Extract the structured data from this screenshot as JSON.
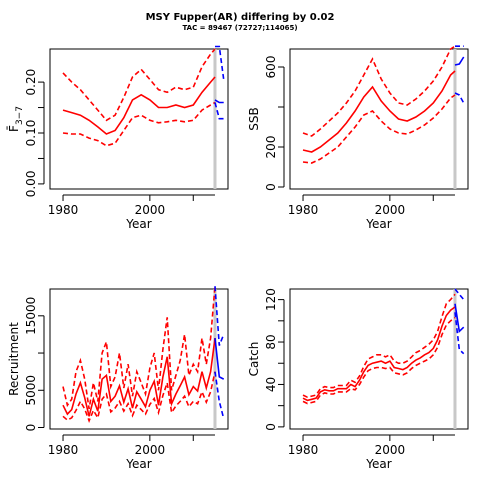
{
  "figure": {
    "title": "MSY Fupper(AR) differing by 0.02",
    "subtitle": "TAC = 89467 (72727;114065)",
    "colors": {
      "history": "#ff0000",
      "projection": "#0000ff",
      "marker": "#c8c8c8",
      "axis": "#000000"
    }
  },
  "chart_data": [
    {
      "type": "line",
      "panel": "top-left",
      "xlabel": "Year",
      "ylabel": "F̄3−7",
      "ylabel_main": "F̄",
      "ylabel_sub": "3−7",
      "xlim": [
        1977,
        2018
      ],
      "ylim": [
        -0.01,
        0.265
      ],
      "x_ticks": [
        1980,
        2000
      ],
      "y_ticks": [
        0.0,
        0.1,
        0.2
      ],
      "y_tick_labels": [
        "0.00",
        "0.10",
        "0.20"
      ],
      "minor_y_ticks": [
        0.05,
        0.15
      ],
      "vline": 2015,
      "series": [
        {
          "role": "estimate",
          "style": "solid",
          "color": "red",
          "x": [
            1980,
            1982,
            1984,
            1986,
            1988,
            1990,
            1992,
            1994,
            1996,
            1998,
            2000,
            2002,
            2004,
            2006,
            2008,
            2010,
            2012,
            2014,
            2015
          ],
          "y": [
            0.145,
            0.14,
            0.135,
            0.125,
            0.112,
            0.098,
            0.105,
            0.13,
            0.165,
            0.175,
            0.165,
            0.15,
            0.15,
            0.155,
            0.15,
            0.155,
            0.18,
            0.2,
            0.21
          ]
        },
        {
          "role": "upper",
          "style": "dashed",
          "color": "red",
          "x": [
            1980,
            1982,
            1984,
            1986,
            1988,
            1990,
            1992,
            1994,
            1996,
            1998,
            2000,
            2002,
            2004,
            2006,
            2008,
            2010,
            2012,
            2014,
            2015
          ],
          "y": [
            0.218,
            0.2,
            0.185,
            0.165,
            0.145,
            0.125,
            0.135,
            0.17,
            0.21,
            0.225,
            0.205,
            0.185,
            0.18,
            0.19,
            0.185,
            0.19,
            0.23,
            0.255,
            0.265
          ]
        },
        {
          "role": "lower",
          "style": "dashed",
          "color": "red",
          "x": [
            1980,
            1982,
            1984,
            1986,
            1988,
            1990,
            1992,
            1994,
            1996,
            1998,
            2000,
            2002,
            2004,
            2006,
            2008,
            2010,
            2012,
            2014,
            2015
          ],
          "y": [
            0.1,
            0.098,
            0.098,
            0.09,
            0.085,
            0.075,
            0.08,
            0.105,
            0.13,
            0.135,
            0.125,
            0.12,
            0.122,
            0.125,
            0.122,
            0.125,
            0.145,
            0.155,
            0.16
          ]
        },
        {
          "role": "projection",
          "style": "solid",
          "color": "blue",
          "x": [
            2015,
            2016,
            2017
          ],
          "y": [
            0.165,
            0.16,
            0.16
          ]
        },
        {
          "role": "projection-upper",
          "style": "dashed",
          "color": "blue",
          "x": [
            2015,
            2016,
            2017
          ],
          "y": [
            0.27,
            0.27,
            0.205
          ]
        },
        {
          "role": "projection-lower",
          "style": "dashed",
          "color": "blue",
          "x": [
            2015,
            2016,
            2017
          ],
          "y": [
            0.16,
            0.128,
            0.128
          ]
        }
      ]
    },
    {
      "type": "line",
      "panel": "top-right",
      "xlabel": "Year",
      "ylabel": "SSB",
      "xlim": [
        1977,
        2018
      ],
      "ylim": [
        -10,
        690
      ],
      "x_ticks": [
        1980,
        2000
      ],
      "y_ticks": [
        0,
        200,
        600
      ],
      "y_tick_labels": [
        "0",
        "200",
        "600"
      ],
      "minor_y_ticks": [
        400
      ],
      "vline": 2015,
      "series": [
        {
          "role": "estimate",
          "style": "solid",
          "color": "red",
          "x": [
            1980,
            1982,
            1984,
            1986,
            1988,
            1990,
            1992,
            1994,
            1996,
            1998,
            2000,
            2002,
            2004,
            2006,
            2008,
            2010,
            2012,
            2014,
            2015
          ],
          "y": [
            185,
            175,
            200,
            235,
            270,
            320,
            380,
            450,
            500,
            430,
            380,
            340,
            330,
            350,
            380,
            420,
            480,
            560,
            580
          ]
        },
        {
          "role": "upper",
          "style": "dashed",
          "color": "red",
          "x": [
            1980,
            1982,
            1984,
            1986,
            1988,
            1990,
            1992,
            1994,
            1996,
            1998,
            2000,
            2002,
            2004,
            2006,
            2008,
            2010,
            2012,
            2014,
            2015
          ],
          "y": [
            270,
            255,
            290,
            330,
            370,
            420,
            480,
            560,
            640,
            540,
            470,
            420,
            410,
            440,
            480,
            530,
            600,
            690,
            720
          ]
        },
        {
          "role": "lower",
          "style": "dashed",
          "color": "red",
          "x": [
            1980,
            1982,
            1984,
            1986,
            1988,
            1990,
            1992,
            1994,
            1996,
            1998,
            2000,
            2002,
            2004,
            2006,
            2008,
            2010,
            2012,
            2014,
            2015
          ],
          "y": [
            125,
            120,
            140,
            170,
            200,
            250,
            300,
            360,
            380,
            330,
            290,
            270,
            265,
            285,
            310,
            345,
            390,
            445,
            460
          ]
        },
        {
          "role": "projection",
          "style": "solid",
          "color": "blue",
          "x": [
            2015,
            2016,
            2017
          ],
          "y": [
            610,
            615,
            650
          ]
        },
        {
          "role": "projection-upper",
          "style": "dashed",
          "color": "blue",
          "x": [
            2015,
            2016,
            2017
          ],
          "y": [
            720,
            760,
            790
          ]
        },
        {
          "role": "projection-lower",
          "style": "dashed",
          "color": "blue",
          "x": [
            2015,
            2016,
            2017
          ],
          "y": [
            470,
            460,
            420
          ]
        }
      ]
    },
    {
      "type": "line",
      "panel": "bottom-left",
      "xlabel": "Year",
      "ylabel": "Recruitment",
      "xlim": [
        1977,
        2018
      ],
      "ylim": [
        -200,
        18600
      ],
      "x_ticks": [
        1980,
        2000
      ],
      "y_ticks": [
        0,
        5000,
        15000
      ],
      "y_tick_labels": [
        "0",
        "5000",
        "15000"
      ],
      "minor_y_ticks": [
        10000
      ],
      "vline": 2015,
      "series": [
        {
          "role": "estimate",
          "style": "solid",
          "color": "red",
          "x": [
            1980,
            1981,
            1982,
            1983,
            1984,
            1985,
            1986,
            1987,
            1988,
            1989,
            1990,
            1991,
            1992,
            1993,
            1994,
            1995,
            1996,
            1997,
            1998,
            1999,
            2000,
            2001,
            2002,
            2003,
            2004,
            2005,
            2006,
            2007,
            2008,
            2009,
            2010,
            2011,
            2012,
            2013,
            2014,
            2015
          ],
          "y": [
            3000,
            1800,
            2400,
            4500,
            6000,
            4000,
            1500,
            3800,
            2200,
            6500,
            7000,
            3500,
            4200,
            5600,
            3400,
            5200,
            2600,
            4800,
            3800,
            2800,
            5000,
            6200,
            3000,
            6800,
            9500,
            3200,
            4500,
            5600,
            6800,
            4400,
            5500,
            4900,
            7500,
            5300,
            7500,
            12000
          ]
        },
        {
          "role": "upper",
          "style": "dashed",
          "color": "red",
          "x": [
            1980,
            1981,
            1982,
            1983,
            1984,
            1985,
            1986,
            1987,
            1988,
            1989,
            1990,
            1991,
            1992,
            1993,
            1994,
            1995,
            1996,
            1997,
            1998,
            1999,
            2000,
            2001,
            2002,
            2003,
            2004,
            2005,
            2006,
            2007,
            2008,
            2009,
            2010,
            2011,
            2012,
            2013,
            2014,
            2015
          ],
          "y": [
            5500,
            3000,
            3800,
            7500,
            9000,
            6500,
            2500,
            6000,
            3500,
            10000,
            11500,
            5500,
            6800,
            10000,
            5300,
            8500,
            4200,
            7500,
            6000,
            4500,
            8000,
            10000,
            5000,
            10500,
            14800,
            5000,
            7000,
            9000,
            12500,
            7000,
            8500,
            7500,
            12000,
            8500,
            12000,
            19500
          ]
        },
        {
          "role": "lower",
          "style": "dashed",
          "color": "red",
          "x": [
            1980,
            1981,
            1982,
            1983,
            1984,
            1985,
            1986,
            1987,
            1988,
            1989,
            1990,
            1991,
            1992,
            1993,
            1994,
            1995,
            1996,
            1997,
            1998,
            1999,
            2000,
            2001,
            2002,
            2003,
            2004,
            2005,
            2006,
            2007,
            2008,
            2009,
            2010,
            2011,
            2012,
            2013,
            2014,
            2015
          ],
          "y": [
            1500,
            1000,
            1300,
            2300,
            3500,
            2500,
            900,
            2300,
            1300,
            3800,
            4500,
            2100,
            2600,
            3500,
            2200,
            3200,
            1600,
            3000,
            2400,
            1800,
            3100,
            3900,
            2000,
            4300,
            6000,
            2000,
            2900,
            3500,
            4200,
            2800,
            3500,
            3200,
            4800,
            3400,
            4800,
            7500
          ]
        },
        {
          "role": "projection",
          "style": "solid",
          "color": "blue",
          "x": [
            2015,
            2016,
            2017
          ],
          "y": [
            12000,
            6800,
            6500
          ]
        },
        {
          "role": "projection-upper",
          "style": "dashed",
          "color": "blue",
          "x": [
            2015,
            2016,
            2017
          ],
          "y": [
            19500,
            11000,
            12500
          ]
        },
        {
          "role": "projection-lower",
          "style": "dashed",
          "color": "blue",
          "x": [
            2015,
            2016,
            2017
          ],
          "y": [
            7500,
            3500,
            1200
          ]
        }
      ]
    },
    {
      "type": "line",
      "panel": "bottom-right",
      "xlabel": "Year",
      "ylabel": "Catch",
      "xlim": [
        1977,
        2018
      ],
      "ylim": [
        -2,
        130
      ],
      "x_ticks": [
        1980,
        2000
      ],
      "y_ticks": [
        0,
        40,
        80,
        120
      ],
      "y_tick_labels": [
        "0",
        "40",
        "80",
        "120"
      ],
      "minor_y_ticks": [
        20,
        60,
        100
      ],
      "vline": 2015,
      "series": [
        {
          "role": "estimate",
          "style": "solid",
          "color": "red",
          "x": [
            1980,
            1981,
            1982,
            1983,
            1984,
            1985,
            1986,
            1987,
            1988,
            1989,
            1990,
            1991,
            1992,
            1993,
            1994,
            1995,
            1996,
            1997,
            1998,
            1999,
            2000,
            2001,
            2002,
            2003,
            2004,
            2005,
            2006,
            2007,
            2008,
            2009,
            2010,
            2011,
            2012,
            2013,
            2014,
            2015
          ],
          "y": [
            27,
            25,
            26,
            27,
            33,
            35,
            34,
            34,
            36,
            36,
            36,
            40,
            38,
            44,
            52,
            58,
            60,
            61,
            62,
            60,
            62,
            56,
            55,
            54,
            56,
            60,
            63,
            65,
            68,
            70,
            74,
            82,
            95,
            105,
            110,
            113
          ]
        },
        {
          "role": "upper",
          "style": "dashed",
          "color": "red",
          "x": [
            1980,
            1981,
            1982,
            1983,
            1984,
            1985,
            1986,
            1987,
            1988,
            1989,
            1990,
            1991,
            1992,
            1993,
            1994,
            1995,
            1996,
            1997,
            1998,
            1999,
            2000,
            2001,
            2002,
            2003,
            2004,
            2005,
            2006,
            2007,
            2008,
            2009,
            2010,
            2011,
            2012,
            2013,
            2014,
            2015
          ],
          "y": [
            30,
            28,
            29,
            30,
            36,
            38,
            37,
            37,
            39,
            39,
            39,
            44,
            42,
            48,
            57,
            64,
            66,
            68,
            68,
            66,
            68,
            62,
            60,
            60,
            62,
            66,
            70,
            72,
            75,
            78,
            82,
            90,
            104,
            116,
            120,
            125
          ]
        },
        {
          "role": "lower",
          "style": "dashed",
          "color": "red",
          "x": [
            1980,
            1981,
            1982,
            1983,
            1984,
            1985,
            1986,
            1987,
            1988,
            1989,
            1990,
            1991,
            1992,
            1993,
            1994,
            1995,
            1996,
            1997,
            1998,
            1999,
            2000,
            2001,
            2002,
            2003,
            2004,
            2005,
            2006,
            2007,
            2008,
            2009,
            2010,
            2011,
            2012,
            2013,
            2014,
            2015
          ],
          "y": [
            24,
            22,
            23,
            24,
            30,
            32,
            31,
            31,
            33,
            33,
            33,
            36,
            35,
            40,
            47,
            53,
            55,
            56,
            56,
            55,
            56,
            51,
            50,
            49,
            51,
            55,
            58,
            60,
            62,
            64,
            68,
            75,
            87,
            96,
            100,
            103
          ]
        },
        {
          "role": "projection",
          "style": "solid",
          "color": "blue",
          "x": [
            2015,
            2016,
            2017
          ],
          "y": [
            116,
            90,
            94
          ]
        },
        {
          "role": "projection-upper",
          "style": "dashed",
          "color": "blue",
          "x": [
            2015,
            2016,
            2017
          ],
          "y": [
            130,
            125,
            120
          ]
        },
        {
          "role": "projection-lower",
          "style": "dashed",
          "color": "blue",
          "x": [
            2015,
            2016,
            2017
          ],
          "y": [
            108,
            73,
            69
          ]
        }
      ]
    }
  ]
}
